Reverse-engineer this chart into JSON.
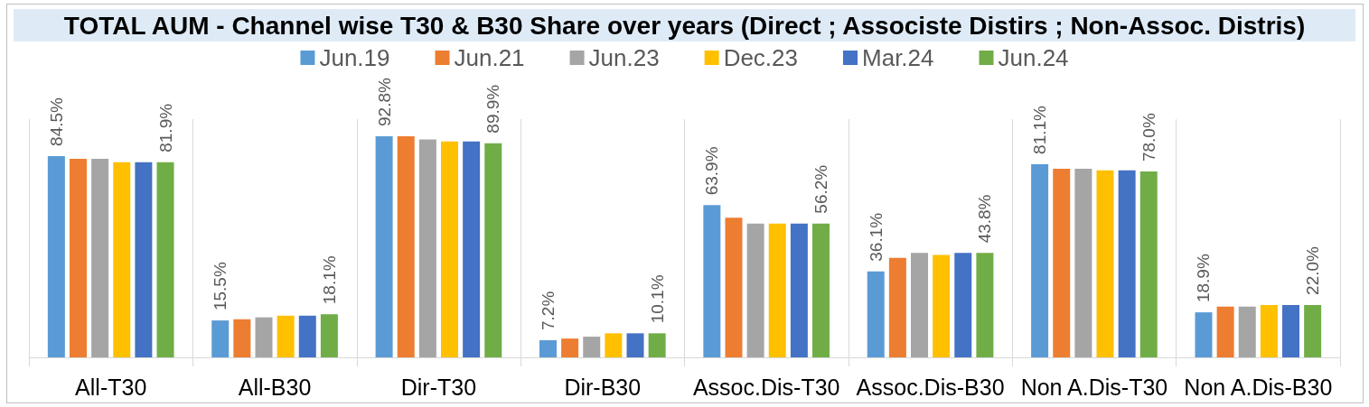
{
  "chart_data": {
    "type": "bar",
    "title": "TOTAL AUM - Channel wise T30 & B30 Share over years (Direct ; Associste Distirs ; Non-Assoc. Distris)",
    "categories": [
      "All-T30",
      "All-B30",
      "Dir-T30",
      "Dir-B30",
      "Assoc.Dis-T30",
      "Assoc.Dis-B30",
      "Non A.Dis-T30",
      "Non A.Dis-B30"
    ],
    "series": [
      {
        "name": "Jun.19",
        "color": "#5b9bd5",
        "values": [
          84.5,
          15.5,
          92.8,
          7.2,
          63.9,
          36.1,
          81.1,
          18.9
        ],
        "value_labels": [
          "84.5%",
          "15.5%",
          "92.8%",
          "7.2%",
          "63.9%",
          "36.1%",
          "81.1%",
          "18.9%"
        ]
      },
      {
        "name": "Jun.21",
        "color": "#ed7d31",
        "values": [
          83.3,
          16.0,
          92.8,
          7.9,
          58.6,
          41.8,
          79.2,
          21.3
        ]
      },
      {
        "name": "Jun.23",
        "color": "#a5a5a5",
        "values": [
          83.3,
          16.8,
          91.5,
          8.7,
          56.2,
          43.8,
          79.2,
          21.3
        ]
      },
      {
        "name": "Dec.23",
        "color": "#ffc000",
        "values": [
          81.9,
          17.5,
          90.6,
          10.1,
          56.2,
          43.0,
          78.5,
          22.0
        ]
      },
      {
        "name": "Mar.24",
        "color": "#4472c4",
        "values": [
          81.9,
          17.5,
          90.6,
          10.1,
          56.2,
          43.8,
          78.5,
          22.0
        ]
      },
      {
        "name": "Jun.24",
        "color": "#70ad47",
        "values": [
          81.9,
          18.1,
          89.9,
          10.1,
          56.2,
          43.8,
          78.0,
          22.0
        ],
        "value_labels": [
          "81.9%",
          "18.1%",
          "89.9%",
          "10.1%",
          "56.2%",
          "43.8%",
          "78.0%",
          "22.0%"
        ]
      }
    ],
    "legend": "top",
    "grid": "x",
    "tick_labels": "x"
  }
}
